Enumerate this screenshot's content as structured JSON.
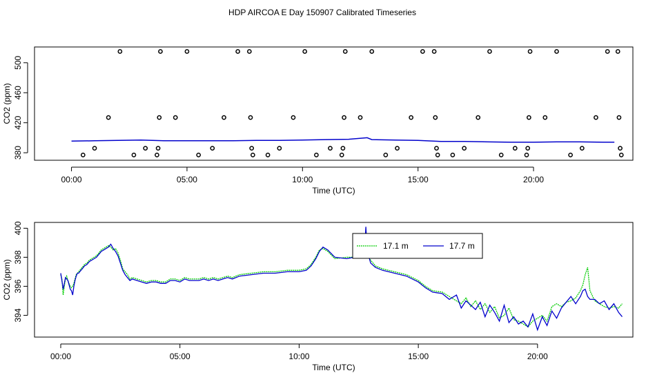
{
  "figure": {
    "title": "HDP AIRCOA E  Day 150907  Calibrated Timeseries"
  },
  "chart_data": [
    {
      "type": "scatter",
      "xlabel": "Time (UTC)",
      "ylabel": "CO2 (ppm)",
      "xlim": [
        -1.6,
        24.3
      ],
      "ylim": [
        370,
        521
      ],
      "x_ticks": [
        0,
        5,
        10,
        15,
        20
      ],
      "x_tick_labels": [
        "00:00",
        "05:00",
        "10:00",
        "15:00",
        "20:00"
      ],
      "y_ticks": [
        380,
        420,
        460,
        500
      ],
      "y_tick_labels": [
        "380",
        "420",
        "460",
        "500"
      ],
      "grid": false,
      "points": [
        [
          0.5,
          377
        ],
        [
          1.0,
          386
        ],
        [
          1.6,
          427
        ],
        [
          2.1,
          515
        ],
        [
          2.7,
          377
        ],
        [
          3.2,
          386
        ],
        [
          3.7,
          377
        ],
        [
          3.75,
          386
        ],
        [
          3.8,
          427
        ],
        [
          3.85,
          515
        ],
        [
          4.5,
          427
        ],
        [
          5.0,
          515
        ],
        [
          5.5,
          377
        ],
        [
          6.1,
          386
        ],
        [
          6.6,
          427
        ],
        [
          7.2,
          515
        ],
        [
          7.7,
          515
        ],
        [
          7.75,
          427
        ],
        [
          7.8,
          386
        ],
        [
          7.85,
          377
        ],
        [
          8.5,
          377
        ],
        [
          9.0,
          386
        ],
        [
          9.6,
          427
        ],
        [
          10.1,
          515
        ],
        [
          10.6,
          377
        ],
        [
          11.2,
          386
        ],
        [
          11.7,
          377
        ],
        [
          11.75,
          386
        ],
        [
          11.8,
          427
        ],
        [
          11.85,
          515
        ],
        [
          12.5,
          427
        ],
        [
          13.0,
          515
        ],
        [
          13.6,
          377
        ],
        [
          14.1,
          386
        ],
        [
          14.7,
          427
        ],
        [
          15.2,
          515
        ],
        [
          15.7,
          515
        ],
        [
          15.75,
          427
        ],
        [
          15.8,
          386
        ],
        [
          15.85,
          377
        ],
        [
          16.5,
          377
        ],
        [
          17.0,
          386
        ],
        [
          17.6,
          427
        ],
        [
          18.1,
          515
        ],
        [
          18.6,
          377
        ],
        [
          19.2,
          386
        ],
        [
          19.7,
          377
        ],
        [
          19.75,
          386
        ],
        [
          19.8,
          427
        ],
        [
          19.85,
          515
        ],
        [
          20.5,
          427
        ],
        [
          21.0,
          515
        ],
        [
          21.6,
          377
        ],
        [
          22.1,
          386
        ],
        [
          22.7,
          427
        ],
        [
          23.2,
          515
        ],
        [
          23.65,
          515
        ],
        [
          23.7,
          427
        ],
        [
          23.75,
          386
        ],
        [
          23.8,
          377
        ]
      ],
      "line": {
        "x": [
          0.0,
          1.0,
          2.0,
          3.0,
          4.0,
          5.0,
          6.0,
          7.0,
          8.0,
          9.0,
          10.0,
          11.0,
          12.0,
          12.8,
          13.0,
          14.0,
          15.0,
          16.0,
          17.0,
          18.0,
          19.0,
          20.0,
          21.0,
          22.0,
          23.0,
          23.5
        ],
        "y": [
          395.5,
          396,
          396.5,
          397,
          396,
          396,
          396,
          396,
          396.5,
          396.5,
          397,
          397.5,
          398,
          400,
          397.5,
          397,
          396.5,
          395,
          395,
          394.5,
          394,
          394,
          394.5,
          394.5,
          394,
          394
        ],
        "color": "#0000cc"
      },
      "point_color": "#000000"
    },
    {
      "type": "line",
      "xlabel": "Time (UTC)",
      "ylabel": "CO2 (ppm)",
      "xlim": [
        -1.1,
        24.0
      ],
      "ylim": [
        392.5,
        400.4
      ],
      "x_ticks": [
        0,
        5,
        10,
        15,
        20
      ],
      "x_tick_labels": [
        "00:00",
        "05:00",
        "10:00",
        "15:00",
        "20:00"
      ],
      "y_ticks": [
        394,
        396,
        398,
        400
      ],
      "y_tick_labels": [
        "394",
        "396",
        "398",
        "400"
      ],
      "grid": false,
      "legend": "top-center",
      "series": [
        {
          "name": "17.1 m",
          "color": "#00cc00",
          "dash": "2,1",
          "x": [
            0.0,
            0.05,
            0.1,
            0.15,
            0.2,
            0.25,
            0.3,
            0.35,
            0.4,
            0.45,
            0.5,
            0.55,
            0.6,
            0.65,
            0.7,
            0.75,
            0.8,
            0.9,
            1.0,
            1.1,
            1.2,
            1.3,
            1.4,
            1.5,
            1.6,
            1.7,
            1.8,
            1.9,
            2.0,
            2.1,
            2.2,
            2.3,
            2.4,
            2.5,
            2.6,
            2.7,
            2.8,
            2.9,
            3.0,
            3.2,
            3.4,
            3.6,
            3.8,
            4.0,
            4.2,
            4.4,
            4.6,
            4.8,
            5.0,
            5.2,
            5.4,
            5.6,
            5.8,
            6.0,
            6.2,
            6.4,
            6.6,
            6.8,
            7.0,
            7.2,
            7.5,
            8.0,
            8.5,
            9.0,
            9.5,
            10.0,
            10.3,
            10.5,
            10.7,
            10.85,
            11.0,
            11.2,
            11.5,
            12.0,
            12.3,
            12.5,
            12.7,
            12.75,
            12.8,
            12.85,
            12.9,
            13.0,
            13.2,
            13.5,
            14.0,
            14.5,
            15.0,
            15.3,
            15.6,
            16.0,
            16.3,
            16.6,
            16.8,
            17.0,
            17.2,
            17.4,
            17.6,
            17.8,
            18.0,
            18.2,
            18.4,
            18.6,
            18.8,
            19.0,
            19.2,
            19.4,
            19.6,
            19.8,
            20.0,
            20.2,
            20.4,
            20.6,
            20.8,
            21.0,
            21.2,
            21.4,
            21.6,
            21.8,
            21.9,
            22.0,
            22.1,
            22.2,
            22.4,
            22.6,
            22.8,
            23.0,
            23.2,
            23.4,
            23.55
          ],
          "y": [
            396.8,
            396.5,
            395.4,
            396.0,
            396.5,
            396.7,
            396.4,
            396.2,
            396.0,
            395.9,
            396.0,
            396.2,
            396.5,
            396.8,
            396.9,
            397.0,
            397.1,
            397.3,
            397.5,
            397.6,
            397.8,
            397.9,
            398.0,
            398.1,
            398.3,
            398.5,
            398.6,
            398.7,
            398.8,
            398.7,
            398.5,
            398.6,
            398.3,
            397.8,
            397.2,
            397.0,
            396.8,
            396.5,
            396.6,
            396.5,
            396.4,
            396.3,
            396.4,
            396.4,
            396.3,
            396.3,
            396.5,
            396.5,
            396.4,
            396.6,
            396.5,
            396.5,
            396.5,
            396.6,
            396.5,
            396.6,
            396.5,
            396.6,
            396.7,
            396.6,
            396.8,
            396.9,
            397.0,
            397.0,
            397.1,
            397.1,
            397.2,
            397.5,
            398.0,
            398.5,
            398.6,
            398.4,
            397.9,
            398.0,
            398.0,
            398.1,
            398.1,
            398.2,
            398.4,
            398.2,
            398.0,
            397.8,
            397.4,
            397.2,
            397.0,
            396.8,
            396.4,
            396.0,
            395.7,
            395.6,
            395.3,
            395.0,
            394.8,
            395.2,
            394.6,
            395.0,
            394.4,
            394.8,
            394.2,
            394.6,
            393.8,
            394.0,
            394.5,
            393.7,
            393.6,
            393.4,
            393.2,
            393.6,
            393.8,
            394.0,
            393.6,
            394.6,
            394.8,
            394.6,
            394.9,
            395.0,
            395.2,
            395.7,
            396.1,
            396.8,
            397.3,
            395.7,
            395.0,
            394.8,
            394.6,
            394.5,
            394.6,
            394.5,
            394.8
          ]
        },
        {
          "name": "17.7 m",
          "color": "#0000cc",
          "dash": "",
          "x": [
            0.0,
            0.05,
            0.1,
            0.15,
            0.2,
            0.25,
            0.3,
            0.35,
            0.4,
            0.45,
            0.5,
            0.55,
            0.6,
            0.65,
            0.7,
            0.75,
            0.8,
            0.9,
            1.0,
            1.1,
            1.2,
            1.3,
            1.4,
            1.5,
            1.6,
            1.7,
            1.8,
            1.9,
            2.0,
            2.1,
            2.2,
            2.3,
            2.4,
            2.5,
            2.6,
            2.7,
            2.8,
            2.9,
            3.0,
            3.2,
            3.4,
            3.6,
            3.8,
            4.0,
            4.2,
            4.4,
            4.6,
            4.8,
            5.0,
            5.2,
            5.4,
            5.6,
            5.8,
            6.0,
            6.2,
            6.4,
            6.6,
            6.8,
            7.0,
            7.2,
            7.5,
            8.0,
            8.5,
            9.0,
            9.5,
            10.0,
            10.3,
            10.5,
            10.7,
            10.85,
            11.0,
            11.2,
            11.5,
            12.0,
            12.3,
            12.5,
            12.7,
            12.75,
            12.8,
            12.85,
            12.9,
            13.0,
            13.2,
            13.5,
            14.0,
            14.5,
            15.0,
            15.3,
            15.6,
            16.0,
            16.3,
            16.6,
            16.8,
            17.0,
            17.2,
            17.4,
            17.6,
            17.8,
            18.0,
            18.2,
            18.4,
            18.6,
            18.8,
            19.0,
            19.2,
            19.4,
            19.6,
            19.8,
            20.0,
            20.2,
            20.4,
            20.6,
            20.8,
            21.0,
            21.2,
            21.4,
            21.6,
            21.8,
            21.9,
            22.0,
            22.1,
            22.2,
            22.4,
            22.6,
            22.8,
            23.0,
            23.2,
            23.4,
            23.55
          ],
          "y": [
            396.9,
            396.4,
            395.8,
            396.2,
            396.6,
            396.5,
            396.4,
            396.1,
            395.8,
            395.7,
            395.4,
            396.0,
            396.4,
            396.7,
            396.9,
            396.9,
            397.0,
            397.2,
            397.4,
            397.5,
            397.7,
            397.8,
            397.9,
            398.0,
            398.2,
            398.4,
            398.5,
            398.6,
            398.7,
            398.9,
            398.6,
            398.4,
            398.1,
            397.6,
            397.1,
            396.8,
            396.6,
            396.4,
            396.5,
            396.4,
            396.3,
            396.2,
            396.3,
            396.3,
            396.2,
            396.2,
            396.4,
            396.4,
            396.3,
            396.5,
            396.4,
            396.4,
            396.4,
            396.5,
            396.4,
            396.5,
            396.4,
            396.5,
            396.6,
            396.5,
            396.7,
            396.8,
            396.9,
            396.9,
            397.0,
            397.0,
            397.1,
            397.4,
            397.9,
            398.4,
            398.7,
            398.5,
            398.0,
            397.9,
            398.0,
            398.1,
            398.2,
            398.6,
            400.1,
            398.6,
            398.2,
            397.6,
            397.3,
            397.1,
            396.9,
            396.7,
            396.3,
            395.9,
            395.6,
            395.5,
            395.1,
            395.4,
            394.5,
            395.0,
            394.7,
            394.4,
            394.9,
            393.9,
            394.7,
            394.2,
            393.6,
            394.7,
            393.5,
            393.9,
            393.4,
            393.6,
            393.2,
            394.1,
            393.0,
            393.9,
            393.3,
            394.3,
            393.8,
            394.5,
            394.9,
            395.3,
            394.8,
            395.3,
            395.7,
            395.8,
            395.3,
            395.1,
            395.1,
            394.8,
            395.0,
            394.4,
            394.8,
            394.2,
            393.9
          ]
        }
      ]
    }
  ]
}
